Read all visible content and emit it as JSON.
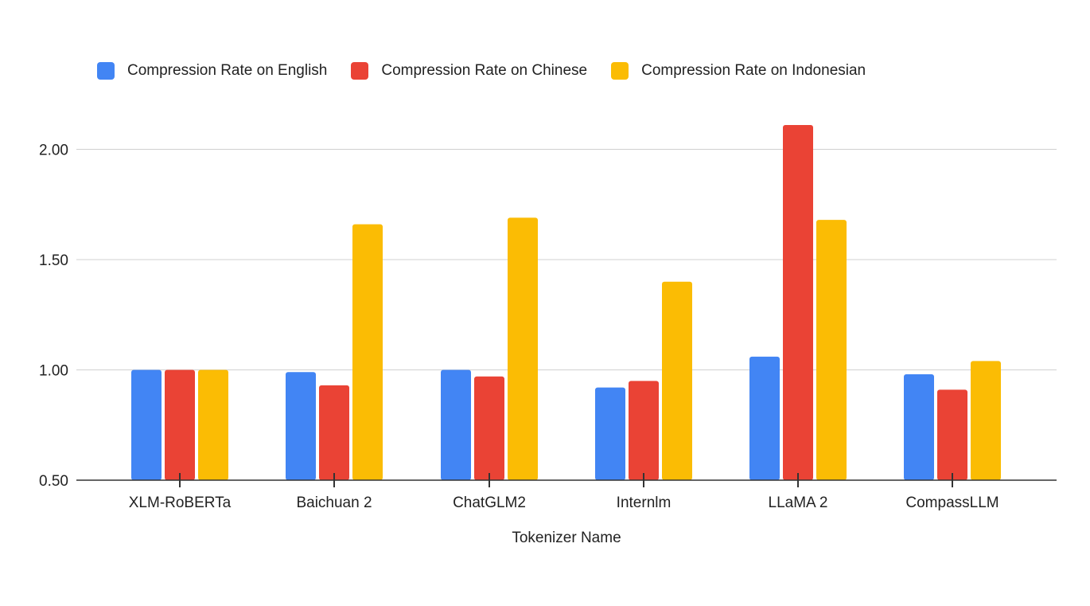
{
  "chart_data": {
    "type": "bar",
    "xlabel": "Tokenizer Name",
    "categories": [
      "XLM-RoBERTa",
      "Baichuan 2",
      "ChatGLM2",
      "Internlm",
      "LLaMA 2",
      "CompassLLM"
    ],
    "series": [
      {
        "name": "Compression Rate on English",
        "color": "#4285f4",
        "values": [
          1.0,
          0.99,
          1.0,
          0.92,
          1.06,
          0.98
        ]
      },
      {
        "name": "Compression Rate on Chinese",
        "color": "#ea4335",
        "values": [
          1.0,
          0.93,
          0.97,
          0.95,
          2.11,
          0.91
        ]
      },
      {
        "name": "Compression Rate on Indonesian",
        "color": "#fbbc04",
        "values": [
          1.0,
          1.66,
          1.69,
          1.4,
          1.68,
          1.04
        ]
      }
    ],
    "ylim": [
      0.5,
      2.2
    ],
    "yticks": [
      "0.50",
      "1.00",
      "1.50",
      "2.00"
    ],
    "ytick_values": [
      0.5,
      1.0,
      1.5,
      2.0
    ],
    "grid": true,
    "legend_position": "top"
  }
}
